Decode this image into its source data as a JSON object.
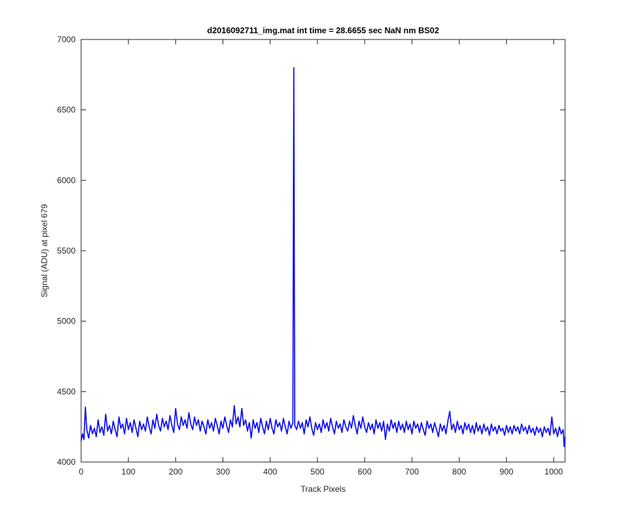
{
  "chart_data": {
    "type": "line",
    "title": "d2016092711_img.mat int time = 28.6655 sec  NaN nm BS02",
    "xlabel": "Track Pixels",
    "ylabel": "Signal (ADU) at pixel 679",
    "xlim": [
      0,
      1024
    ],
    "ylim": [
      4000,
      7000
    ],
    "xticks": [
      "0",
      "100",
      "200",
      "300",
      "400",
      "500",
      "600",
      "700",
      "800",
      "900",
      "1000"
    ],
    "yticks": [
      "4000",
      "4500",
      "5000",
      "5500",
      "6000",
      "6500",
      "7000"
    ],
    "grid": false,
    "legend": "none",
    "colors": {
      "line": "#0000ff",
      "axes": "#262626",
      "background": "#ffffff"
    },
    "series": [
      {
        "points": [
          [
            0,
            4150
          ],
          [
            3,
            4200
          ],
          [
            6,
            4160
          ],
          [
            9,
            4390
          ],
          [
            12,
            4230
          ],
          [
            16,
            4170
          ],
          [
            20,
            4260
          ],
          [
            24,
            4200
          ],
          [
            28,
            4240
          ],
          [
            32,
            4180
          ],
          [
            36,
            4300
          ],
          [
            40,
            4210
          ],
          [
            44,
            4250
          ],
          [
            48,
            4190
          ],
          [
            52,
            4340
          ],
          [
            56,
            4220
          ],
          [
            60,
            4260
          ],
          [
            64,
            4200
          ],
          [
            68,
            4290
          ],
          [
            72,
            4230
          ],
          [
            76,
            4180
          ],
          [
            80,
            4320
          ],
          [
            84,
            4240
          ],
          [
            88,
            4270
          ],
          [
            92,
            4200
          ],
          [
            96,
            4310
          ],
          [
            100,
            4230
          ],
          [
            104,
            4280
          ],
          [
            108,
            4210
          ],
          [
            112,
            4300
          ],
          [
            116,
            4240
          ],
          [
            120,
            4180
          ],
          [
            124,
            4290
          ],
          [
            128,
            4230
          ],
          [
            132,
            4270
          ],
          [
            136,
            4220
          ],
          [
            140,
            4320
          ],
          [
            144,
            4250
          ],
          [
            148,
            4200
          ],
          [
            152,
            4300
          ],
          [
            156,
            4240
          ],
          [
            160,
            4340
          ],
          [
            164,
            4260
          ],
          [
            168,
            4220
          ],
          [
            172,
            4310
          ],
          [
            176,
            4250
          ],
          [
            180,
            4290
          ],
          [
            184,
            4230
          ],
          [
            188,
            4330
          ],
          [
            192,
            4260
          ],
          [
            196,
            4210
          ],
          [
            200,
            4380
          ],
          [
            204,
            4270
          ],
          [
            208,
            4230
          ],
          [
            212,
            4320
          ],
          [
            216,
            4260
          ],
          [
            220,
            4300
          ],
          [
            224,
            4240
          ],
          [
            228,
            4350
          ],
          [
            232,
            4270
          ],
          [
            236,
            4230
          ],
          [
            240,
            4320
          ],
          [
            244,
            4260
          ],
          [
            248,
            4300
          ],
          [
            252,
            4220
          ],
          [
            256,
            4290
          ],
          [
            260,
            4250
          ],
          [
            264,
            4200
          ],
          [
            268,
            4300
          ],
          [
            272,
            4240
          ],
          [
            276,
            4280
          ],
          [
            280,
            4220
          ],
          [
            284,
            4310
          ],
          [
            288,
            4260
          ],
          [
            292,
            4200
          ],
          [
            296,
            4290
          ],
          [
            300,
            4240
          ],
          [
            304,
            4320
          ],
          [
            308,
            4260
          ],
          [
            312,
            4210
          ],
          [
            316,
            4300
          ],
          [
            320,
            4250
          ],
          [
            324,
            4400
          ],
          [
            328,
            4270
          ],
          [
            332,
            4320
          ],
          [
            336,
            4250
          ],
          [
            340,
            4380
          ],
          [
            344,
            4260
          ],
          [
            348,
            4300
          ],
          [
            352,
            4220
          ],
          [
            356,
            4280
          ],
          [
            360,
            4170
          ],
          [
            364,
            4300
          ],
          [
            368,
            4240
          ],
          [
            372,
            4280
          ],
          [
            376,
            4210
          ],
          [
            380,
            4310
          ],
          [
            384,
            4250
          ],
          [
            388,
            4200
          ],
          [
            392,
            4290
          ],
          [
            396,
            4230
          ],
          [
            400,
            4310
          ],
          [
            404,
            4240
          ],
          [
            408,
            4200
          ],
          [
            412,
            4300
          ],
          [
            416,
            4250
          ],
          [
            420,
            4280
          ],
          [
            424,
            4220
          ],
          [
            428,
            4310
          ],
          [
            432,
            4250
          ],
          [
            436,
            4200
          ],
          [
            440,
            4290
          ],
          [
            444,
            4240
          ],
          [
            448,
            4280
          ],
          [
            450,
            6800
          ],
          [
            452,
            4260
          ],
          [
            456,
            4230
          ],
          [
            460,
            4290
          ],
          [
            464,
            4240
          ],
          [
            468,
            4280
          ],
          [
            472,
            4200
          ],
          [
            476,
            4300
          ],
          [
            480,
            4250
          ],
          [
            484,
            4320
          ],
          [
            488,
            4240
          ],
          [
            492,
            4190
          ],
          [
            496,
            4280
          ],
          [
            500,
            4230
          ],
          [
            504,
            4270
          ],
          [
            508,
            4210
          ],
          [
            512,
            4300
          ],
          [
            516,
            4240
          ],
          [
            520,
            4280
          ],
          [
            524,
            4220
          ],
          [
            528,
            4310
          ],
          [
            532,
            4250
          ],
          [
            536,
            4200
          ],
          [
            540,
            4290
          ],
          [
            544,
            4240
          ],
          [
            548,
            4270
          ],
          [
            552,
            4210
          ],
          [
            556,
            4300
          ],
          [
            560,
            4250
          ],
          [
            564,
            4220
          ],
          [
            568,
            4290
          ],
          [
            572,
            4240
          ],
          [
            576,
            4330
          ],
          [
            580,
            4260
          ],
          [
            584,
            4200
          ],
          [
            588,
            4290
          ],
          [
            592,
            4240
          ],
          [
            596,
            4320
          ],
          [
            600,
            4250
          ],
          [
            604,
            4210
          ],
          [
            608,
            4280
          ],
          [
            612,
            4230
          ],
          [
            616,
            4270
          ],
          [
            620,
            4200
          ],
          [
            624,
            4300
          ],
          [
            628,
            4240
          ],
          [
            632,
            4280
          ],
          [
            636,
            4220
          ],
          [
            640,
            4290
          ],
          [
            644,
            4160
          ],
          [
            648,
            4270
          ],
          [
            652,
            4220
          ],
          [
            656,
            4300
          ],
          [
            660,
            4240
          ],
          [
            664,
            4280
          ],
          [
            668,
            4210
          ],
          [
            672,
            4290
          ],
          [
            676,
            4230
          ],
          [
            680,
            4270
          ],
          [
            684,
            4210
          ],
          [
            688,
            4290
          ],
          [
            692,
            4230
          ],
          [
            696,
            4270
          ],
          [
            700,
            4200
          ],
          [
            704,
            4290
          ],
          [
            708,
            4240
          ],
          [
            712,
            4270
          ],
          [
            716,
            4210
          ],
          [
            720,
            4280
          ],
          [
            724,
            4230
          ],
          [
            728,
            4190
          ],
          [
            732,
            4290
          ],
          [
            736,
            4240
          ],
          [
            740,
            4270
          ],
          [
            744,
            4210
          ],
          [
            748,
            4280
          ],
          [
            752,
            4230
          ],
          [
            756,
            4180
          ],
          [
            760,
            4270
          ],
          [
            764,
            4220
          ],
          [
            768,
            4260
          ],
          [
            772,
            4200
          ],
          [
            776,
            4290
          ],
          [
            780,
            4360
          ],
          [
            784,
            4230
          ],
          [
            788,
            4270
          ],
          [
            792,
            4210
          ],
          [
            796,
            4290
          ],
          [
            800,
            4230
          ],
          [
            804,
            4260
          ],
          [
            808,
            4200
          ],
          [
            812,
            4280
          ],
          [
            816,
            4230
          ],
          [
            820,
            4270
          ],
          [
            824,
            4210
          ],
          [
            828,
            4260
          ],
          [
            832,
            4200
          ],
          [
            836,
            4280
          ],
          [
            840,
            4220
          ],
          [
            844,
            4260
          ],
          [
            848,
            4200
          ],
          [
            852,
            4270
          ],
          [
            856,
            4220
          ],
          [
            860,
            4250
          ],
          [
            864,
            4190
          ],
          [
            868,
            4270
          ],
          [
            872,
            4220
          ],
          [
            876,
            4250
          ],
          [
            880,
            4200
          ],
          [
            884,
            4260
          ],
          [
            888,
            4220
          ],
          [
            892,
            4240
          ],
          [
            896,
            4190
          ],
          [
            900,
            4260
          ],
          [
            904,
            4210
          ],
          [
            908,
            4250
          ],
          [
            912,
            4200
          ],
          [
            916,
            4260
          ],
          [
            920,
            4220
          ],
          [
            924,
            4250
          ],
          [
            928,
            4200
          ],
          [
            932,
            4270
          ],
          [
            936,
            4220
          ],
          [
            940,
            4250
          ],
          [
            944,
            4200
          ],
          [
            948,
            4260
          ],
          [
            952,
            4210
          ],
          [
            956,
            4240
          ],
          [
            960,
            4190
          ],
          [
            964,
            4250
          ],
          [
            968,
            4210
          ],
          [
            972,
            4240
          ],
          [
            976,
            4180
          ],
          [
            980,
            4250
          ],
          [
            984,
            4210
          ],
          [
            988,
            4240
          ],
          [
            992,
            4190
          ],
          [
            996,
            4320
          ],
          [
            1000,
            4200
          ],
          [
            1004,
            4240
          ],
          [
            1008,
            4180
          ],
          [
            1012,
            4250
          ],
          [
            1016,
            4200
          ],
          [
            1020,
            4230
          ],
          [
            1022,
            4110
          ],
          [
            1024,
            4180
          ]
        ]
      }
    ]
  }
}
